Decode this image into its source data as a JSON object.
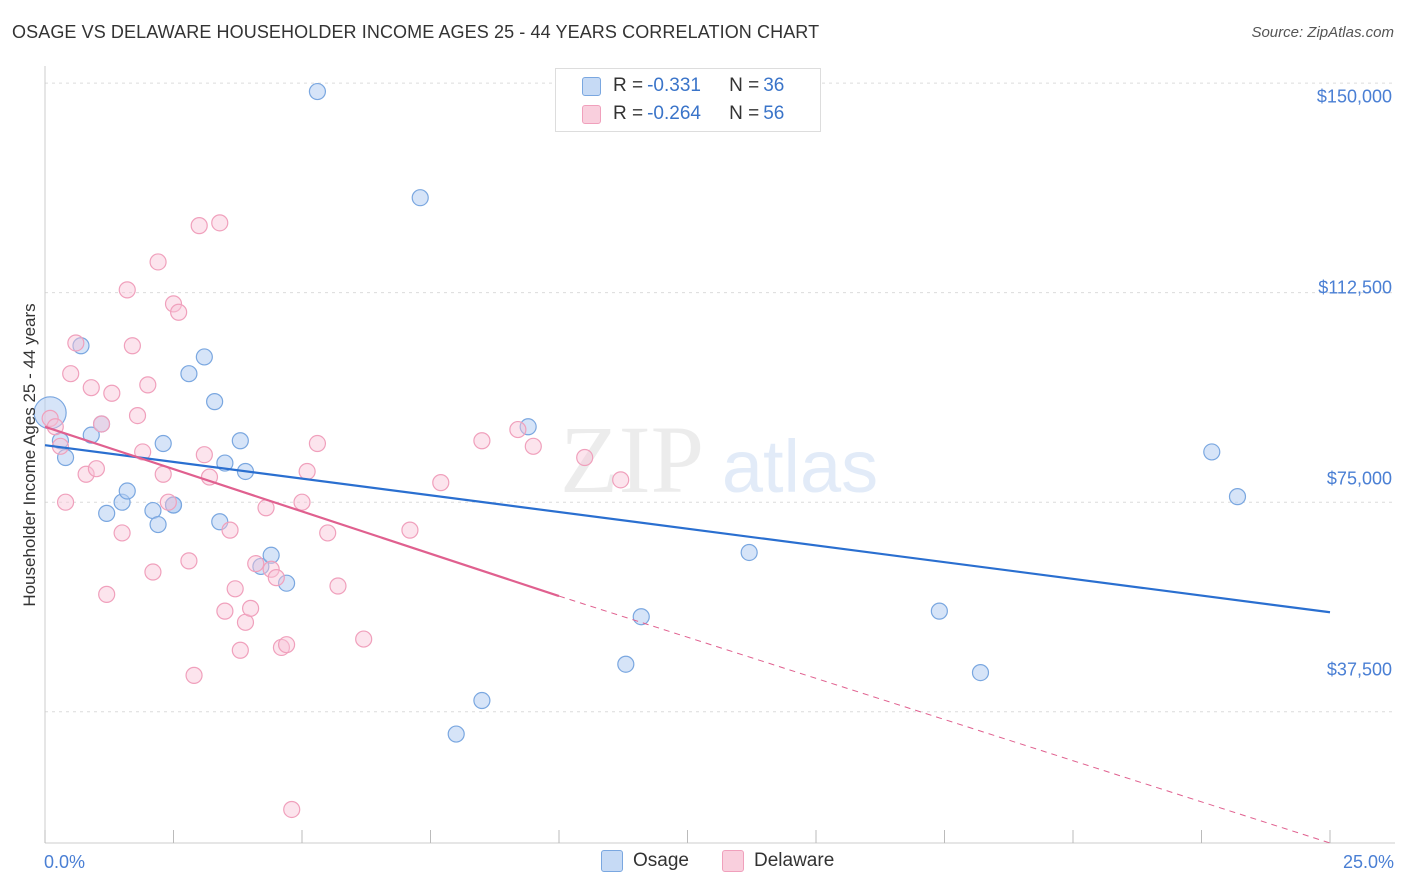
{
  "title": "OSAGE VS DELAWARE HOUSEHOLDER INCOME AGES 25 - 44 YEARS CORRELATION CHART",
  "source": "Source: ZipAtlas.com",
  "watermark": {
    "zip": "ZIP",
    "atlas": "atlas"
  },
  "legend": {
    "osage": {
      "r_label": "R = ",
      "r_value": "-0.331",
      "n_label": "N = ",
      "n_value": "36"
    },
    "delaware": {
      "r_label": "R = ",
      "r_value": "-0.264",
      "n_label": "N = ",
      "n_value": "56"
    }
  },
  "chart_data": {
    "type": "scatter",
    "title": "OSAGE VS DELAWARE HOUSEHOLDER INCOME AGES 25 - 44 YEARS CORRELATION CHART",
    "xlabel": "",
    "ylabel": "Householder Income Ages 25 - 44 years",
    "xlim": [
      0,
      25
    ],
    "ylim": [
      14000,
      152000
    ],
    "x_tick_labels": [
      "0.0%",
      "25.0%"
    ],
    "y_ticks": [
      37500,
      75000,
      112500,
      150000
    ],
    "y_tick_labels": [
      "$37,500",
      "$75,000",
      "$112,500",
      "$150,000"
    ],
    "colors": {
      "osage": "#7aa7e0",
      "delaware": "#f0a0bc",
      "osage_line": "#2a6fd0",
      "delaware_line": "#e0608f"
    },
    "series": [
      {
        "name": "Osage",
        "x": [
          0.1,
          0.3,
          0.4,
          0.7,
          0.9,
          1.1,
          1.2,
          1.5,
          1.6,
          2.1,
          2.2,
          2.3,
          2.5,
          2.5,
          2.8,
          3.1,
          3.3,
          3.4,
          3.5,
          3.8,
          3.9,
          4.2,
          4.4,
          4.7,
          5.3,
          7.3,
          8.0,
          8.5,
          9.4,
          11.3,
          11.6,
          13.7,
          17.4,
          18.2,
          22.7,
          23.2
        ],
        "y": [
          91000,
          86000,
          83000,
          103000,
          87000,
          89000,
          73000,
          75000,
          77000,
          73500,
          71000,
          85500,
          74500,
          74500,
          98000,
          101000,
          93000,
          71500,
          82000,
          86000,
          80500,
          63500,
          65500,
          60500,
          148500,
          129500,
          33500,
          39500,
          88500,
          46000,
          54500,
          66000,
          55500,
          44500,
          84000,
          76000
        ]
      },
      {
        "name": "Delaware",
        "x": [
          0.1,
          0.2,
          0.3,
          0.4,
          0.5,
          0.6,
          0.8,
          0.9,
          1.0,
          1.1,
          1.2,
          1.3,
          1.5,
          1.6,
          1.7,
          1.8,
          1.9,
          2.0,
          2.1,
          2.2,
          2.3,
          2.4,
          2.5,
          2.6,
          2.8,
          2.9,
          3.0,
          3.1,
          3.2,
          3.4,
          3.5,
          3.6,
          3.7,
          3.8,
          3.9,
          4.0,
          4.1,
          4.3,
          4.4,
          4.5,
          4.6,
          4.7,
          4.8,
          5.0,
          5.1,
          5.3,
          5.5,
          5.7,
          6.2,
          7.1,
          7.7,
          8.5,
          9.2,
          9.5,
          10.5,
          11.2
        ],
        "y": [
          90000,
          88500,
          85000,
          75000,
          98000,
          103500,
          80000,
          95500,
          81000,
          89000,
          58500,
          94500,
          69500,
          113000,
          103000,
          90500,
          84000,
          96000,
          62500,
          118000,
          80000,
          75000,
          110500,
          109000,
          64500,
          44000,
          124500,
          83500,
          79500,
          125000,
          55500,
          70000,
          59500,
          48500,
          53500,
          56000,
          64000,
          74000,
          63000,
          61500,
          49000,
          49500,
          20000,
          75000,
          80500,
          85500,
          69500,
          60000,
          50500,
          70000,
          78500,
          86000,
          88000,
          85000,
          83000,
          79000
        ]
      }
    ],
    "trend_lines": [
      {
        "name": "Osage",
        "x": [
          0.0,
          25.0
        ],
        "y": [
          85200,
          55300
        ],
        "style": "solid"
      },
      {
        "name": "Delaware",
        "x": [
          0.0,
          10.0
        ],
        "y": [
          88500,
          58200
        ],
        "style": "solid"
      },
      {
        "name": "Delaware",
        "x": [
          10.0,
          25.0
        ],
        "y": [
          58200,
          14000
        ],
        "style": "dashed"
      }
    ]
  },
  "bottom_legend": {
    "osage": "Osage",
    "delaware": "Delaware"
  }
}
